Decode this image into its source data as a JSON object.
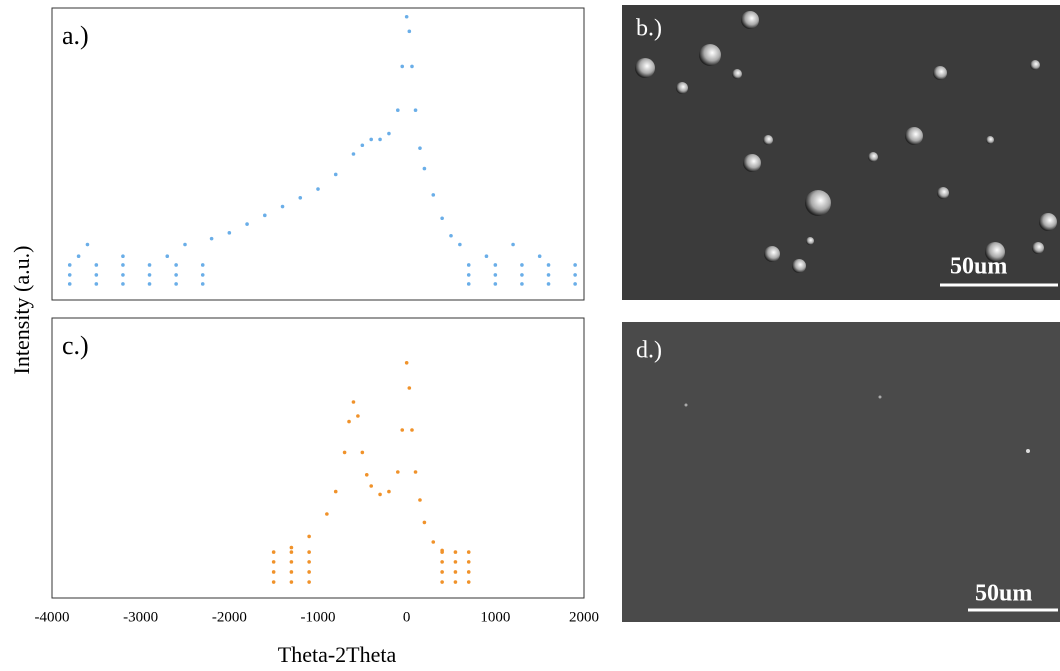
{
  "chart_data": [
    {
      "type": "scatter",
      "label": "a.)",
      "color": "#6aaee8",
      "ylabel": "Intensity (a.u.)",
      "xlim": [
        -4000,
        2000
      ],
      "ylim": [
        0,
        100
      ],
      "x": [
        -3800,
        -3500,
        -3200,
        -2900,
        -2600,
        -2300,
        -3800,
        -3500,
        -3200,
        -2900,
        -2600,
        -2300,
        -3800,
        -3500,
        -3200,
        -2900,
        -2600,
        -2300,
        -3700,
        -3200,
        -2700,
        -3600,
        -2500,
        -2200,
        -2000,
        -1800,
        -1600,
        -1400,
        -1200,
        -1000,
        -800,
        -600,
        -500,
        -400,
        -300,
        -200,
        -100,
        -50,
        0,
        30,
        60,
        100,
        150,
        200,
        300,
        400,
        500,
        600,
        700,
        1000,
        1300,
        1600,
        1900,
        700,
        1000,
        1300,
        1600,
        1900,
        700,
        1000,
        1300,
        1600,
        1900,
        900,
        1500,
        1200
      ],
      "y": [
        5.5,
        5.5,
        5.5,
        5.5,
        5.5,
        5.5,
        8.6,
        8.6,
        8.6,
        8.6,
        8.6,
        8.6,
        12,
        12,
        12,
        12,
        12,
        12,
        15,
        15,
        15,
        19,
        19,
        21,
        23,
        26,
        29,
        32,
        35,
        38,
        43,
        50,
        53,
        55,
        55,
        57,
        65,
        80,
        97,
        92,
        80,
        65,
        52,
        45,
        36,
        28,
        22,
        19,
        5.5,
        5.5,
        5.5,
        5.5,
        5.5,
        8.6,
        8.6,
        8.6,
        8.6,
        8.6,
        12,
        12,
        12,
        12,
        12,
        15,
        15,
        19
      ]
    },
    {
      "type": "scatter",
      "label": "c.)",
      "color": "#f0922a",
      "xlabel": "Theta-2Theta",
      "xlim": [
        -4000,
        2000
      ],
      "ylim": [
        0,
        100
      ],
      "xticks": [
        -4000,
        -3000,
        -2000,
        -1000,
        0,
        1000,
        2000
      ],
      "x": [
        -1500,
        -1300,
        -1100,
        -1500,
        -1300,
        -1100,
        -1500,
        -1300,
        -1100,
        -1500,
        -1300,
        -1100,
        -1300,
        -1100,
        -900,
        -800,
        -700,
        -650,
        -600,
        -550,
        -500,
        -450,
        -400,
        -300,
        -200,
        -100,
        -50,
        0,
        30,
        60,
        100,
        150,
        200,
        300,
        400,
        400,
        550,
        700,
        400,
        550,
        700,
        400,
        550,
        700,
        400,
        550,
        700
      ],
      "y": [
        5.7,
        5.7,
        5.7,
        9.3,
        9.3,
        9.3,
        12.9,
        12.9,
        12.9,
        16.4,
        16.4,
        16.4,
        18,
        22,
        30,
        38,
        52,
        63,
        70,
        65,
        52,
        44,
        40,
        37,
        38,
        45,
        60,
        84,
        75,
        60,
        45,
        35,
        27,
        20,
        17,
        5.7,
        5.7,
        5.7,
        9.3,
        9.3,
        9.3,
        12.9,
        12.9,
        12.9,
        16.4,
        16.4,
        16.4
      ]
    }
  ],
  "images": [
    {
      "label": "b.)",
      "scale_bar": "50um"
    },
    {
      "label": "d.)",
      "scale_bar": "50um"
    }
  ]
}
